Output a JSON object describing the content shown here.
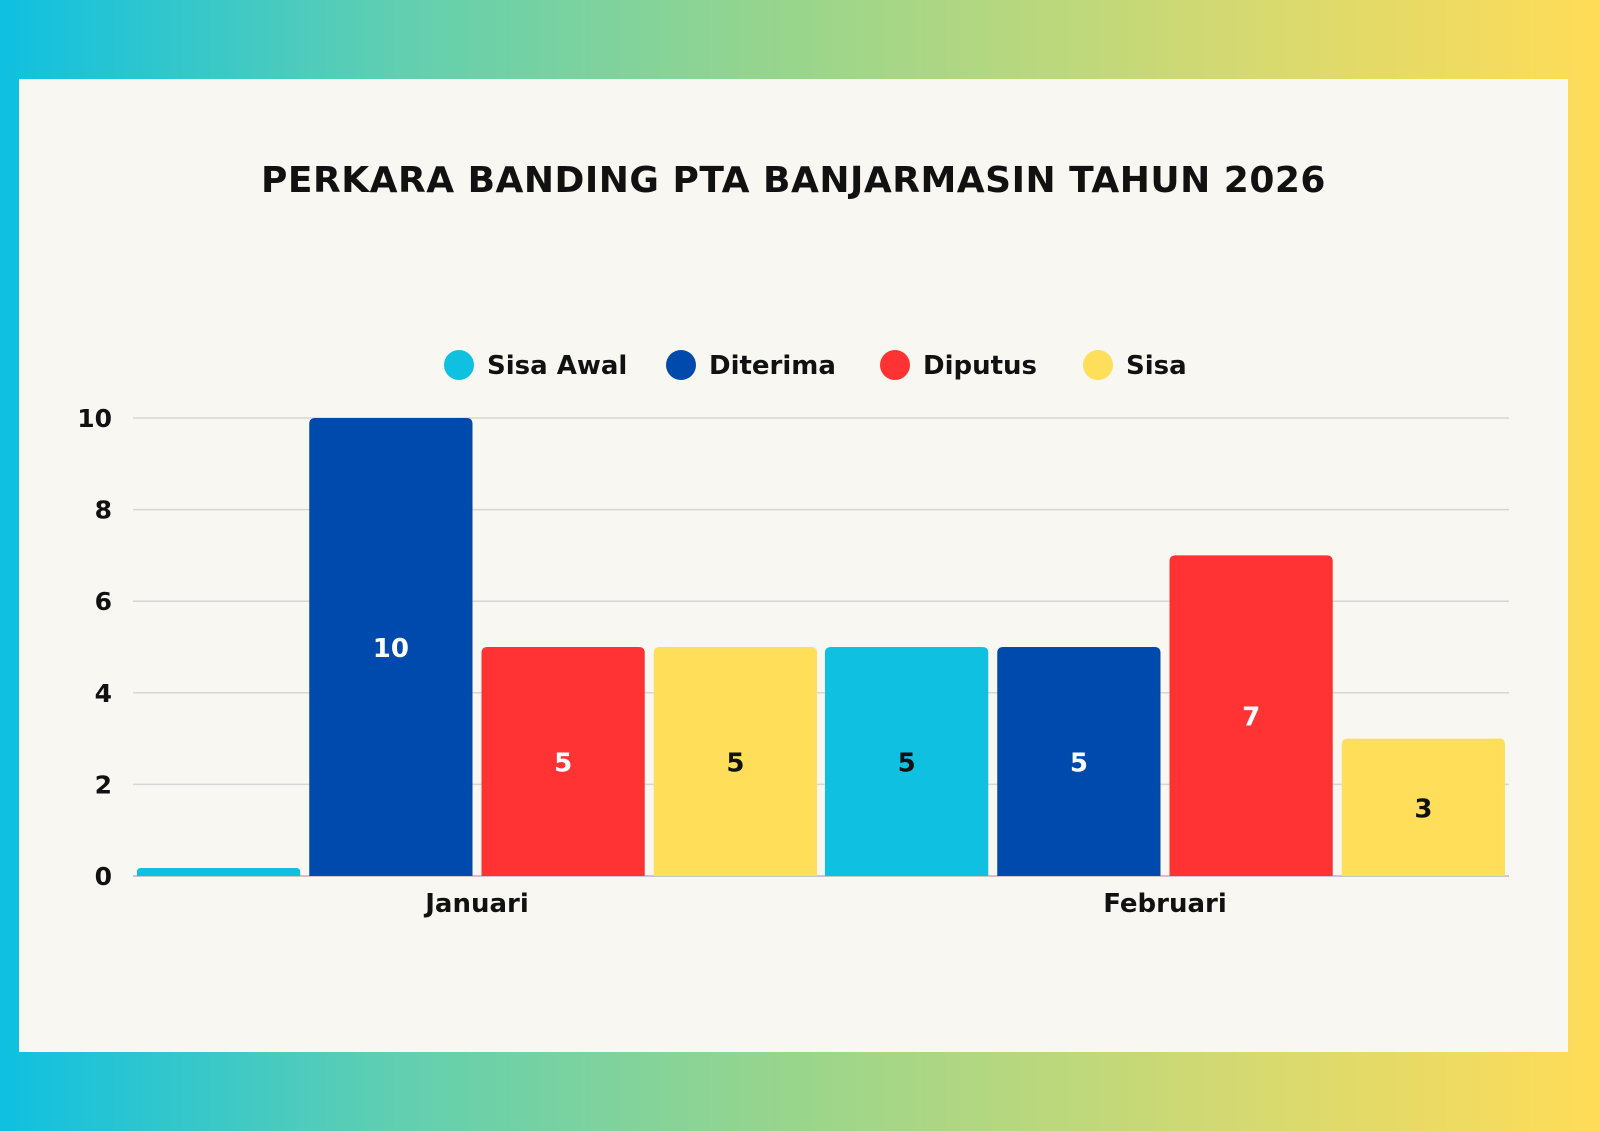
{
  "chart_data": {
    "type": "bar",
    "title": "PERKARA BANDING PTA BANJARMASIN TAHUN 2026",
    "xlabel": "",
    "ylabel": "",
    "categories": [
      "Januari",
      "Februari"
    ],
    "series": [
      {
        "name": "Sisa Awal",
        "color": "#0fc0e0",
        "values": [
          0,
          5
        ],
        "labels": [
          "",
          "5"
        ],
        "label_color": "#111111"
      },
      {
        "name": "Diterima",
        "color": "#004aad",
        "values": [
          10,
          5
        ],
        "labels": [
          "10",
          "5"
        ],
        "label_color": "#ffffff"
      },
      {
        "name": "Diputus",
        "color": "#ff3333",
        "values": [
          5,
          7
        ],
        "labels": [
          "5",
          "7"
        ],
        "label_color": "#ffffff"
      },
      {
        "name": "Sisa",
        "color": "#ffde59",
        "values": [
          5,
          3
        ],
        "labels": [
          "5",
          "3"
        ],
        "label_color": "#111111"
      }
    ],
    "ylim": [
      0,
      10
    ],
    "yticks": [
      "0",
      "2",
      "4",
      "6",
      "8",
      "10"
    ],
    "grid": true,
    "legend": "top-center"
  }
}
